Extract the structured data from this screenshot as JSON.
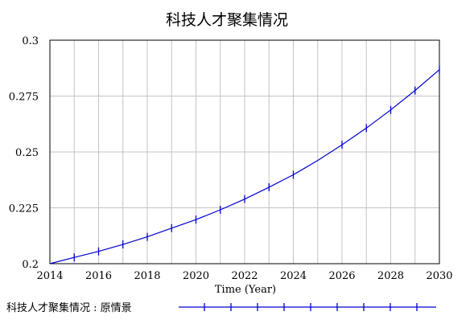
{
  "chart_data": {
    "type": "line",
    "title": "科技人才聚集情况",
    "xlabel": "Time (Year)",
    "ylabel": "",
    "xlim": [
      2014,
      2030
    ],
    "ylim": [
      0.2,
      0.3
    ],
    "x_ticks": [
      "2014",
      "2016",
      "2018",
      "2020",
      "2022",
      "2024",
      "2026",
      "2028",
      "2030"
    ],
    "y_ticks": [
      "0.2",
      "0.225",
      "0.25",
      "0.275",
      "0.3"
    ],
    "grid": true,
    "legend_position": "bottom",
    "series": [
      {
        "name": "科技人才聚集情况 : 原情景",
        "color": "#0000cc",
        "x": [
          2014,
          2015,
          2016,
          2017,
          2018,
          2019,
          2020,
          2021,
          2022,
          2023,
          2024,
          2025,
          2026,
          2027,
          2028,
          2029,
          2030
        ],
        "y": [
          0.2,
          0.2028,
          0.2055,
          0.2086,
          0.212,
          0.2159,
          0.2197,
          0.2241,
          0.2289,
          0.2342,
          0.2398,
          0.2462,
          0.2532,
          0.2607,
          0.2688,
          0.2775,
          0.2868
        ],
        "marker_x": [
          2015,
          2016,
          2017,
          2018,
          2019,
          2020,
          2021,
          2022,
          2023,
          2024,
          2026,
          2027,
          2028,
          2029,
          2030
        ]
      }
    ]
  }
}
